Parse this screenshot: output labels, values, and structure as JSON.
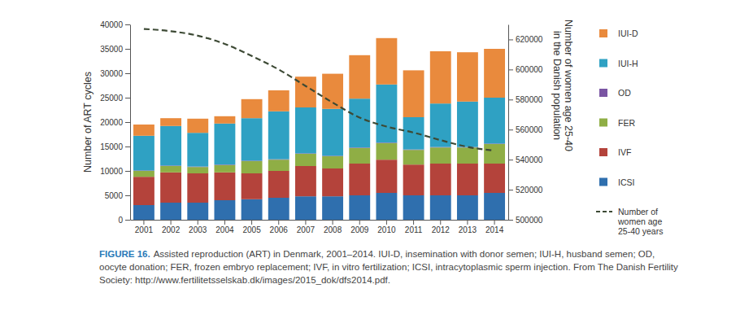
{
  "chart_data": {
    "type": "bar",
    "stacked": true,
    "grid": false,
    "legend": "right",
    "y_label": "Number of ART cycles",
    "y2_label": "Number of women age 25-40 in the Danish population",
    "caption_label": "FIGURE 16.",
    "caption": "Assisted reproduction (ART) in Denmark, 2001–2014. IUI-D, insemination with donor semen; IUI-H, husband semen; OD, oocyte donation; FER, frozen embryo replacement; IVF, in vitro fertilization; ICSI, intracytoplasmic sperm injection. From The Danish Fertility Society: http://www.fertilitetsselskab.dk/images/2015_dok/dfs2014.pdf.",
    "categories": [
      "2001",
      "2002",
      "2003",
      "2004",
      "2005",
      "2006",
      "2007",
      "2008",
      "2009",
      "2010",
      "2011",
      "2012",
      "2013",
      "2014"
    ],
    "ylim": [
      0,
      40000
    ],
    "yticks": [
      0,
      5000,
      10000,
      15000,
      20000,
      25000,
      30000,
      35000,
      40000
    ],
    "y2lim": [
      500000,
      630000
    ],
    "y2ticks": [
      500000,
      520000,
      540000,
      560000,
      580000,
      600000,
      620000
    ],
    "series": [
      {
        "name": "ICSI",
        "color": "#2f6fae",
        "values": [
          3000,
          3500,
          3500,
          4000,
          4200,
          4500,
          4800,
          4800,
          5000,
          5500,
          5000,
          5000,
          5000,
          5500
        ]
      },
      {
        "name": "IVF",
        "color": "#b4433b",
        "values": [
          5800,
          6200,
          6000,
          5700,
          5300,
          5500,
          6200,
          5700,
          6500,
          6800,
          6300,
          6500,
          6500,
          6000
        ]
      },
      {
        "name": "FER",
        "color": "#8fae45",
        "values": [
          1200,
          1300,
          1300,
          1500,
          2500,
          2300,
          2500,
          2500,
          3200,
          3400,
          3000,
          3300,
          3300,
          4000
        ]
      },
      {
        "name": "OD",
        "color": "#7a55a3",
        "values": [
          100,
          100,
          100,
          100,
          100,
          100,
          100,
          100,
          100,
          100,
          100,
          100,
          100,
          100
        ]
      },
      {
        "name": "IUI-H",
        "color": "#2fa1c3",
        "values": [
          7100,
          8100,
          6900,
          8400,
          8700,
          9800,
          9400,
          9600,
          10000,
          11900,
          6600,
          8900,
          9300,
          9400
        ]
      },
      {
        "name": "IUI-D",
        "color": "#e98a3d",
        "values": [
          2300,
          1600,
          2900,
          1500,
          3900,
          4300,
          6300,
          7200,
          8900,
          9500,
          9600,
          10700,
          10100,
          10000
        ]
      },
      {
        "name": "Number of women age 25-40 years",
        "type": "line",
        "line_style": "dashed",
        "axis": "y2",
        "color": "#3d4a35",
        "values": [
          627000,
          625500,
          622500,
          617000,
          609000,
          600000,
          589000,
          578000,
          568000,
          562000,
          558000,
          553000,
          548500,
          546000
        ]
      }
    ]
  }
}
